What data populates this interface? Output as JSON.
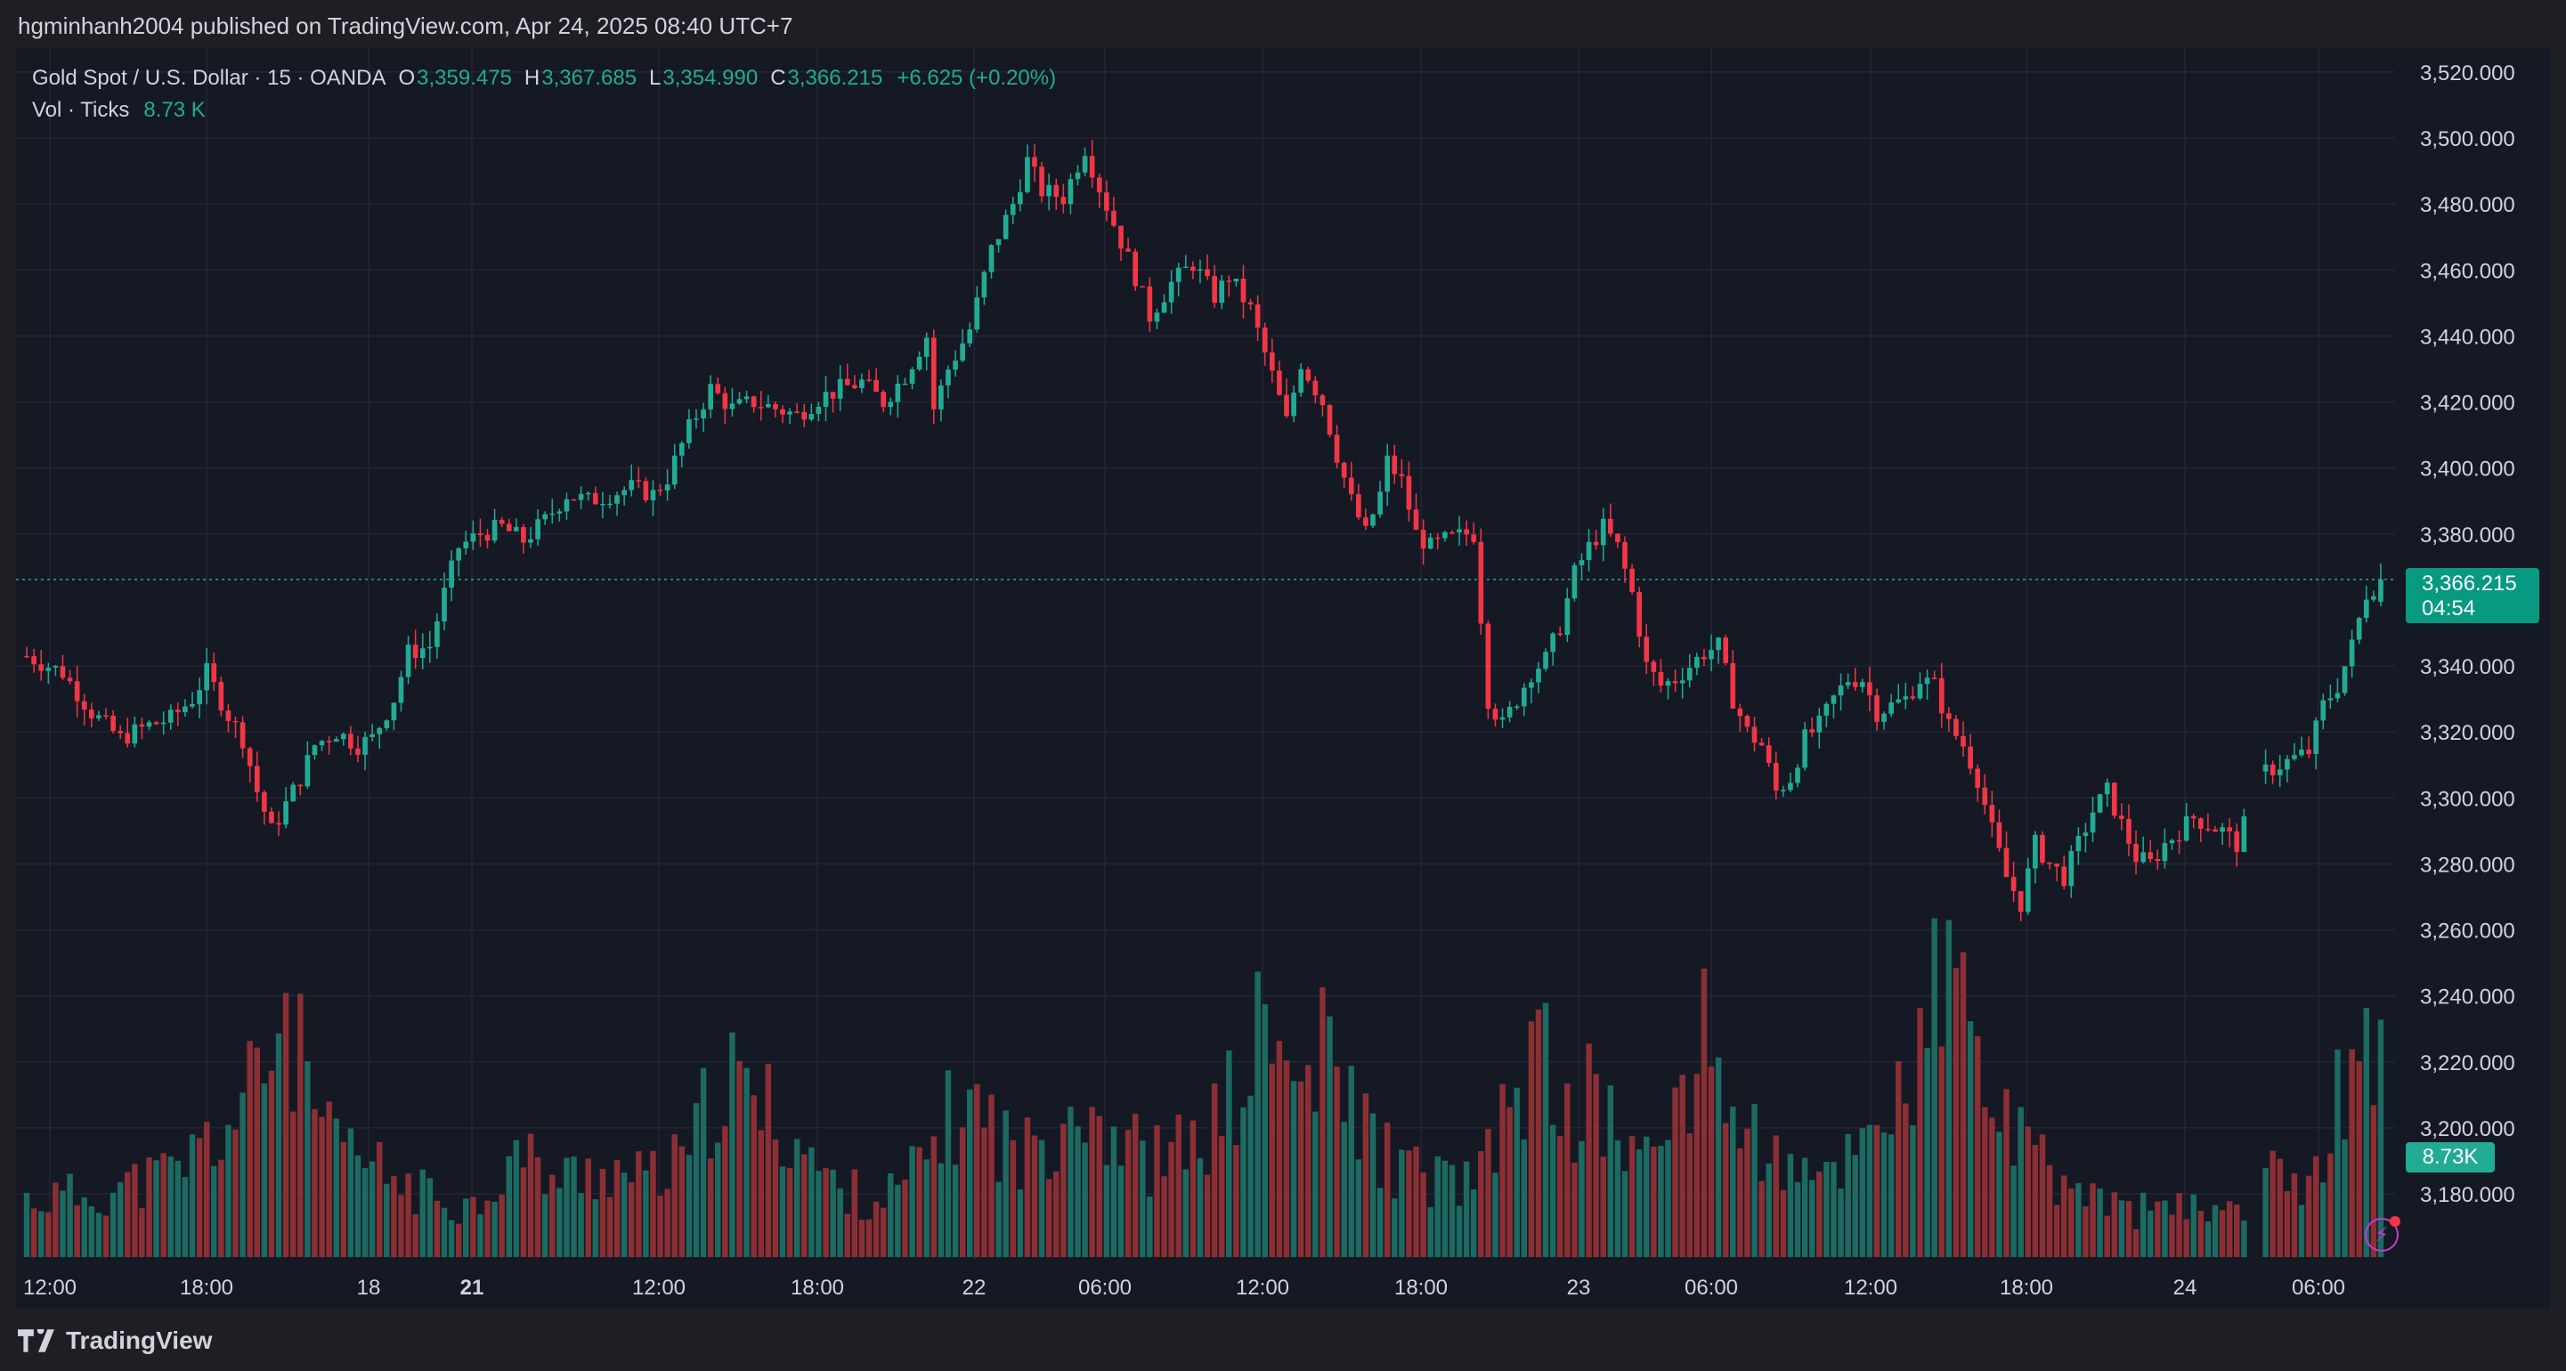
{
  "header": {
    "published_by": "hgminhanh2004 published on TradingView.com, Apr 24, 2025 08:40 UTC+7"
  },
  "legend": {
    "symbol": "Gold Spot / U.S. Dollar · 15 · OANDA",
    "open_label": "O",
    "open": "3,359.475",
    "high_label": "H",
    "high": "3,367.685",
    "low_label": "L",
    "low": "3,354.990",
    "close_label": "C",
    "close": "3,366.215",
    "change": "+6.625 (+0.20%)",
    "vol_label": "Vol · Ticks",
    "vol_value": "8.73 K"
  },
  "price_tag": {
    "price": "3,366.215",
    "countdown": "04:54"
  },
  "volume_tag": "8.73K",
  "footer": {
    "brand": "TradingView"
  },
  "colors": {
    "up": "#22ab94",
    "down": "#f23645",
    "vol_up": "#1c6a61",
    "vol_down": "#8c2f35",
    "background": "#151924",
    "grid": "#242733",
    "text": "#d1d4dc"
  },
  "chart_data": {
    "type": "candlestick",
    "timeframe": "15",
    "y_axis_labels": [
      "3,520.000",
      "3,500.000",
      "3,480.000",
      "3,460.000",
      "3,440.000",
      "3,420.000",
      "3,400.000",
      "3,380.000",
      "3,340.000",
      "3,320.000",
      "3,300.000",
      "3,280.000",
      "3,260.000",
      "3,240.000",
      "3,220.000",
      "3,200.000",
      "3,180.000"
    ],
    "ylim": [
      3165,
      3525
    ],
    "x_axis_labels": [
      "12:00",
      "18:00",
      "18",
      "21",
      "12:00",
      "18:00",
      "22",
      "06:00",
      "12:00",
      "18:00",
      "23",
      "06:00",
      "12:00",
      "18:00",
      "24",
      "06:00"
    ],
    "close_series": [
      [
        0,
        3343
      ],
      [
        5,
        3338
      ],
      [
        9,
        3326
      ],
      [
        13,
        3318
      ],
      [
        17,
        3322
      ],
      [
        20,
        3324
      ],
      [
        23,
        3330
      ],
      [
        25,
        3338
      ],
      [
        28,
        3325
      ],
      [
        30,
        3318
      ],
      [
        32,
        3302
      ],
      [
        34,
        3290
      ],
      [
        36,
        3298
      ],
      [
        38,
        3306
      ],
      [
        40,
        3316
      ],
      [
        43,
        3320
      ],
      [
        46,
        3316
      ],
      [
        48,
        3318
      ],
      [
        51,
        3330
      ],
      [
        53,
        3344
      ],
      [
        56,
        3346
      ],
      [
        58,
        3362
      ],
      [
        60,
        3376
      ],
      [
        63,
        3380
      ],
      [
        66,
        3382
      ],
      [
        69,
        3378
      ],
      [
        72,
        3384
      ],
      [
        75,
        3392
      ],
      [
        78,
        3390
      ],
      [
        81,
        3392
      ],
      [
        84,
        3394
      ],
      [
        87,
        3392
      ],
      [
        89,
        3397
      ],
      [
        92,
        3412
      ],
      [
        95,
        3424
      ],
      [
        98,
        3418
      ],
      [
        101,
        3420
      ],
      [
        104,
        3418
      ],
      [
        107,
        3416
      ],
      [
        110,
        3421
      ],
      [
        113,
        3424
      ],
      [
        116,
        3426
      ],
      [
        119,
        3420
      ],
      [
        122,
        3428
      ],
      [
        125,
        3440
      ],
      [
        126,
        3418
      ],
      [
        128,
        3430
      ],
      [
        131,
        3442
      ],
      [
        134,
        3466
      ],
      [
        137,
        3480
      ],
      [
        139,
        3493
      ],
      [
        141,
        3484
      ],
      [
        144,
        3482
      ],
      [
        146,
        3492
      ],
      [
        147,
        3497
      ],
      [
        149,
        3485
      ],
      [
        151,
        3474
      ],
      [
        154,
        3458
      ],
      [
        156,
        3446
      ],
      [
        159,
        3456
      ],
      [
        162,
        3462
      ],
      [
        165,
        3452
      ],
      [
        167,
        3458
      ],
      [
        170,
        3448
      ],
      [
        173,
        3428
      ],
      [
        175,
        3414
      ],
      [
        177,
        3432
      ],
      [
        180,
        3420
      ],
      [
        182,
        3404
      ],
      [
        184,
        3390
      ],
      [
        186,
        3380
      ],
      [
        188,
        3392
      ],
      [
        189,
        3402
      ],
      [
        191,
        3396
      ],
      [
        193,
        3380
      ],
      [
        195,
        3376
      ],
      [
        197,
        3378
      ],
      [
        200,
        3380
      ],
      [
        201,
        3380
      ],
      [
        203,
        3330
      ],
      [
        205,
        3322
      ],
      [
        207,
        3330
      ],
      [
        209,
        3338
      ],
      [
        211,
        3342
      ],
      [
        213,
        3352
      ],
      [
        215,
        3368
      ],
      [
        217,
        3376
      ],
      [
        219,
        3382
      ],
      [
        221,
        3376
      ],
      [
        223,
        3362
      ],
      [
        225,
        3340
      ],
      [
        227,
        3334
      ],
      [
        229,
        3336
      ],
      [
        231,
        3340
      ],
      [
        233,
        3344
      ],
      [
        235,
        3346
      ],
      [
        237,
        3330
      ],
      [
        239,
        3320
      ],
      [
        241,
        3316
      ],
      [
        243,
        3302
      ],
      [
        245,
        3306
      ],
      [
        247,
        3318
      ],
      [
        249,
        3322
      ],
      [
        251,
        3330
      ],
      [
        253,
        3336
      ],
      [
        255,
        3336
      ],
      [
        257,
        3326
      ],
      [
        259,
        3328
      ],
      [
        261,
        3330
      ],
      [
        263,
        3336
      ],
      [
        265,
        3334
      ],
      [
        267,
        3322
      ],
      [
        269,
        3316
      ],
      [
        271,
        3306
      ],
      [
        273,
        3290
      ],
      [
        275,
        3276
      ],
      [
        277,
        3268
      ],
      [
        279,
        3286
      ],
      [
        281,
        3280
      ],
      [
        283,
        3276
      ],
      [
        285,
        3286
      ],
      [
        287,
        3296
      ],
      [
        289,
        3302
      ],
      [
        291,
        3292
      ],
      [
        293,
        3282
      ],
      [
        295,
        3280
      ],
      [
        297,
        3286
      ],
      [
        299,
        3290
      ],
      [
        301,
        3294
      ],
      [
        303,
        3292
      ],
      [
        305,
        3290
      ],
      [
        306,
        3288
      ],
      [
        307,
        3286
      ],
      [
        311,
        3308
      ],
      [
        313,
        3310
      ],
      [
        315,
        3312
      ],
      [
        317,
        3314
      ],
      [
        319,
        3328
      ],
      [
        321,
        3334
      ],
      [
        323,
        3346
      ],
      [
        325,
        3362
      ],
      [
        327,
        3366
      ]
    ],
    "volume_ticks_k": [
      [
        0,
        1.8
      ],
      [
        10,
        2.0
      ],
      [
        20,
        2.6
      ],
      [
        30,
        4.5
      ],
      [
        36,
        7.8
      ],
      [
        38,
        6.0
      ],
      [
        42,
        3.5
      ],
      [
        48,
        2.8
      ],
      [
        55,
        2.0
      ],
      [
        62,
        1.6
      ],
      [
        68,
        3.2
      ],
      [
        74,
        2.4
      ],
      [
        80,
        2.8
      ],
      [
        86,
        2.4
      ],
      [
        92,
        3.0
      ],
      [
        96,
        5.6
      ],
      [
        100,
        5.0
      ],
      [
        106,
        4.0
      ],
      [
        112,
        2.2
      ],
      [
        118,
        1.8
      ],
      [
        122,
        2.2
      ],
      [
        126,
        3.6
      ],
      [
        130,
        4.8
      ],
      [
        134,
        4.2
      ],
      [
        138,
        3.0
      ],
      [
        142,
        4.0
      ],
      [
        146,
        5.4
      ],
      [
        150,
        4.2
      ],
      [
        156,
        3.0
      ],
      [
        162,
        3.4
      ],
      [
        168,
        5.0
      ],
      [
        172,
        7.2
      ],
      [
        176,
        5.2
      ],
      [
        180,
        6.2
      ],
      [
        184,
        4.8
      ],
      [
        188,
        3.4
      ],
      [
        192,
        2.6
      ],
      [
        198,
        2.4
      ],
      [
        202,
        2.4
      ],
      [
        206,
        4.8
      ],
      [
        210,
        6.4
      ],
      [
        214,
        4.4
      ],
      [
        218,
        5.0
      ],
      [
        222,
        3.6
      ],
      [
        226,
        2.8
      ],
      [
        230,
        5.6
      ],
      [
        234,
        6.8
      ],
      [
        238,
        4.0
      ],
      [
        242,
        3.4
      ],
      [
        246,
        2.2
      ],
      [
        250,
        2.6
      ],
      [
        254,
        3.4
      ],
      [
        258,
        5.0
      ],
      [
        262,
        5.2
      ],
      [
        264,
        6.6
      ],
      [
        266,
        9.1
      ],
      [
        268,
        8.2
      ],
      [
        270,
        6.8
      ],
      [
        272,
        5.6
      ],
      [
        276,
        3.6
      ],
      [
        280,
        2.8
      ],
      [
        284,
        2.2
      ],
      [
        288,
        1.8
      ],
      [
        292,
        1.4
      ],
      [
        296,
        1.6
      ],
      [
        300,
        1.4
      ],
      [
        304,
        1.6
      ],
      [
        308,
        1.8
      ],
      [
        312,
        2.4
      ],
      [
        316,
        2.6
      ],
      [
        320,
        4.2
      ],
      [
        322,
        5.4
      ],
      [
        323,
        7.5
      ],
      [
        324,
        6.3
      ],
      [
        327,
        8.73
      ]
    ]
  }
}
